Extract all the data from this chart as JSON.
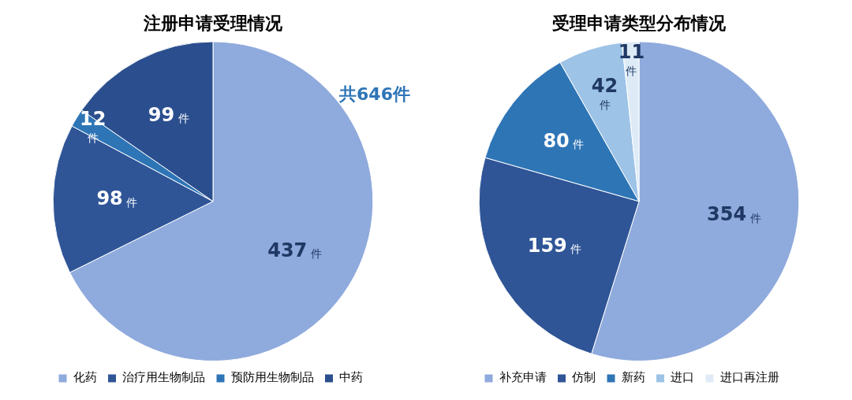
{
  "chart_data": [
    {
      "type": "pie",
      "title": "注册申请受理情况",
      "categories": [
        "化药",
        "治疗用生物制品",
        "预防用生物制品",
        "中药"
      ],
      "values": [
        437,
        98,
        12,
        99
      ],
      "colors": [
        "#8faadc",
        "#2f5597",
        "#2e75b6",
        "#2b4f8e"
      ],
      "value_labels": [
        "437 件",
        "98 件",
        "12 件",
        "99 件"
      ],
      "legend": "bottom",
      "annotations": [
        "共646件"
      ]
    },
    {
      "type": "pie",
      "title": "受理申请类型分布情况",
      "categories": [
        "补充申请",
        "仿制",
        "新药",
        "进口",
        "进口再注册"
      ],
      "values": [
        354,
        159,
        80,
        42,
        11
      ],
      "colors": [
        "#8faadc",
        "#2f5597",
        "#2e75b6",
        "#9dc3e6",
        "#deebf7"
      ],
      "value_labels": [
        "354 件",
        "159 件",
        "80 件",
        "42 件",
        "11 件"
      ],
      "legend": "bottom"
    }
  ]
}
